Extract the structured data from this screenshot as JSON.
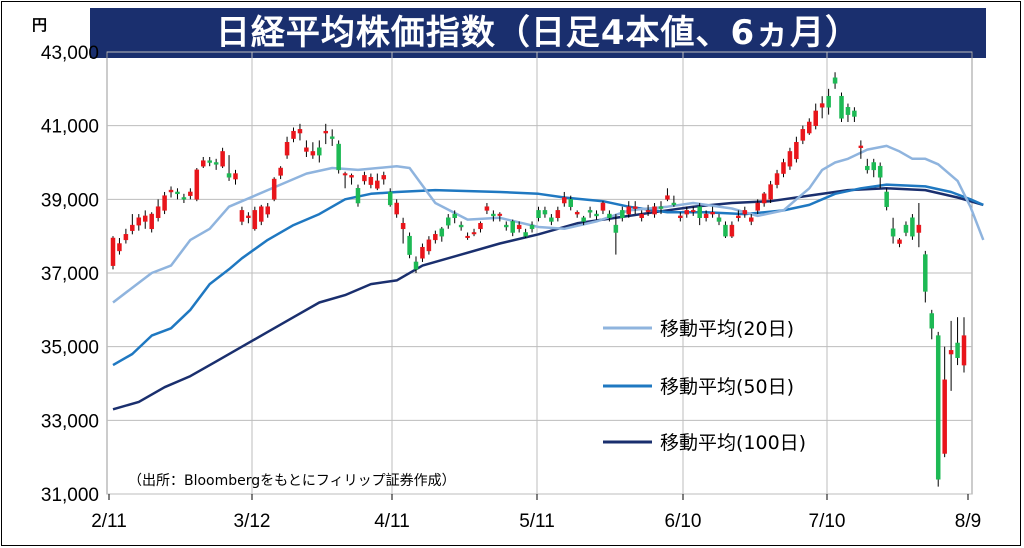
{
  "chart_data": {
    "type": "candlestick",
    "title": "日経平均株価指数（日足4本値、6ヵ月）",
    "unit": "円",
    "source": "（出所：Bloombergをもとにフィリップ証券作成）",
    "ylim": [
      31000,
      43000
    ],
    "y_ticks": [
      "31,000",
      "33,000",
      "35,000",
      "37,000",
      "39,000",
      "41,000",
      "43,000"
    ],
    "y_tick_values": [
      31000,
      33000,
      35000,
      37000,
      39000,
      41000,
      43000
    ],
    "x_ticks": [
      "2/11",
      "3/12",
      "4/11",
      "5/11",
      "6/10",
      "7/10",
      "8/9"
    ],
    "legend": [
      {
        "name": "移動平均(20日)",
        "color": "#8fb4de"
      },
      {
        "name": "移動平均(50日)",
        "color": "#1f78c1"
      },
      {
        "name": "移動平均(100日)",
        "color": "#1a2f6e"
      }
    ],
    "candles": [
      [
        37200,
        37950,
        37100,
        38000
      ],
      [
        37600,
        37800,
        37500,
        37950
      ],
      [
        37900,
        38050,
        37800,
        38200
      ],
      [
        38150,
        38300,
        38050,
        38600
      ],
      [
        38300,
        38500,
        38150,
        38600
      ],
      [
        38400,
        38550,
        38200,
        38700
      ],
      [
        38200,
        38600,
        38100,
        38650
      ],
      [
        38500,
        38800,
        38400,
        39000
      ],
      [
        38700,
        39100,
        38600,
        39200
      ],
      [
        39200,
        39250,
        39050,
        39350
      ],
      [
        39200,
        39150,
        39000,
        39300
      ],
      [
        39050,
        39000,
        38900,
        39150
      ],
      [
        39100,
        39200,
        39000,
        39300
      ],
      [
        39000,
        39800,
        38950,
        39850
      ],
      [
        39900,
        40050,
        39850,
        40150
      ],
      [
        40050,
        40000,
        39900,
        40150
      ],
      [
        40000,
        39950,
        39800,
        40100
      ],
      [
        39900,
        40300,
        39850,
        40400
      ],
      [
        39700,
        39600,
        39500,
        40200
      ],
      [
        39550,
        39700,
        39400,
        39800
      ],
      [
        38400,
        38700,
        38300,
        38800
      ],
      [
        38500,
        38550,
        38350,
        38650
      ],
      [
        38200,
        38700,
        38150,
        38800
      ],
      [
        38400,
        38800,
        38300,
        38850
      ],
      [
        38600,
        38800,
        38500,
        38900
      ],
      [
        39000,
        39550,
        38950,
        39600
      ],
      [
        39650,
        39850,
        39550,
        39900
      ],
      [
        40200,
        40550,
        40100,
        40700
      ],
      [
        40650,
        40850,
        40550,
        40950
      ],
      [
        40800,
        40900,
        40600,
        41050
      ],
      [
        40300,
        40400,
        40150,
        40600
      ],
      [
        40200,
        40300,
        40100,
        40550
      ],
      [
        40400,
        40200,
        40000,
        40600
      ],
      [
        40800,
        40850,
        40500,
        41050
      ],
      [
        40700,
        40650,
        40450,
        40900
      ],
      [
        40500,
        39800,
        39700,
        40600
      ],
      [
        39700,
        39700,
        39300,
        39750
      ],
      [
        39600,
        39650,
        39400,
        39700
      ],
      [
        39300,
        38900,
        38800,
        39400
      ],
      [
        39500,
        39650,
        39400,
        39750
      ],
      [
        39400,
        39600,
        39300,
        39700
      ],
      [
        39300,
        39500,
        39250,
        39700
      ],
      [
        39550,
        39650,
        39400,
        39750
      ],
      [
        39200,
        38850,
        38800,
        39300
      ],
      [
        38600,
        38900,
        38500,
        39000
      ],
      [
        38200,
        38350,
        37800,
        38500
      ],
      [
        38000,
        37500,
        37400,
        38100
      ],
      [
        37300,
        37100,
        37000,
        37450
      ],
      [
        37400,
        37700,
        37300,
        37800
      ],
      [
        37600,
        37900,
        37500,
        38000
      ],
      [
        37900,
        38050,
        37800,
        38150
      ],
      [
        38200,
        38000,
        37850,
        38250
      ],
      [
        38500,
        38300,
        38200,
        38600
      ],
      [
        38600,
        38500,
        38350,
        38700
      ],
      [
        38300,
        38250,
        38150,
        38400
      ],
      [
        38000,
        38000,
        37900,
        38100
      ],
      [
        38100,
        38100,
        38000,
        38200
      ],
      [
        38200,
        38350,
        38100,
        38400
      ],
      [
        38700,
        38800,
        38600,
        38900
      ],
      [
        38600,
        38550,
        38400,
        38700
      ],
      [
        38600,
        38600,
        38400,
        38650
      ],
      [
        38300,
        38250,
        38150,
        38400
      ],
      [
        38400,
        38100,
        38000,
        38450
      ],
      [
        38200,
        38300,
        38100,
        38400
      ],
      [
        38100,
        38000,
        37950,
        38200
      ],
      [
        38300,
        38200,
        38100,
        38400
      ],
      [
        38700,
        38500,
        38400,
        38800
      ],
      [
        38700,
        38600,
        38500,
        38800
      ],
      [
        38500,
        38400,
        38300,
        38600
      ],
      [
        38500,
        38700,
        38400,
        38800
      ],
      [
        38900,
        39050,
        38800,
        39200
      ],
      [
        39000,
        38800,
        38700,
        39100
      ],
      [
        38600,
        38650,
        38500,
        38700
      ],
      [
        38500,
        38400,
        38300,
        38550
      ],
      [
        38700,
        38650,
        38500,
        38800
      ],
      [
        38600,
        38550,
        38450,
        38700
      ],
      [
        38700,
        38900,
        38600,
        38950
      ],
      [
        38600,
        38500,
        38400,
        38700
      ],
      [
        38300,
        38100,
        37500,
        38600
      ],
      [
        38700,
        38500,
        38400,
        38800
      ],
      [
        38600,
        38800,
        38500,
        38950
      ],
      [
        38750,
        38800,
        38600,
        38950
      ],
      [
        38500,
        38600,
        38400,
        38700
      ],
      [
        38700,
        38700,
        38550,
        38850
      ],
      [
        38600,
        38800,
        38500,
        38900
      ],
      [
        38800,
        38750,
        38600,
        38950
      ],
      [
        39000,
        39100,
        38950,
        39300
      ],
      [
        38900,
        38850,
        38800,
        39100
      ],
      [
        38500,
        38550,
        38400,
        38650
      ],
      [
        38600,
        38700,
        38500,
        38800
      ],
      [
        38700,
        38700,
        38550,
        38800
      ],
      [
        38800,
        38500,
        38300,
        38900
      ],
      [
        38500,
        38600,
        38400,
        38700
      ],
      [
        38600,
        38650,
        38500,
        38800
      ],
      [
        38500,
        38400,
        38300,
        38600
      ],
      [
        38300,
        38000,
        37950,
        38400
      ],
      [
        38000,
        38300,
        37950,
        38400
      ],
      [
        38500,
        38550,
        38400,
        38700
      ],
      [
        38600,
        38700,
        38500,
        38800
      ],
      [
        38400,
        38500,
        38300,
        38600
      ],
      [
        38700,
        38900,
        38600,
        39000
      ],
      [
        38900,
        39150,
        38800,
        39200
      ],
      [
        39000,
        39400,
        38900,
        39500
      ],
      [
        39400,
        39700,
        39300,
        39800
      ],
      [
        39700,
        40000,
        39600,
        40100
      ],
      [
        39900,
        40300,
        39800,
        40400
      ],
      [
        40100,
        40550,
        40000,
        40700
      ],
      [
        40600,
        40900,
        40500,
        41000
      ],
      [
        40800,
        41100,
        40750,
        41200
      ],
      [
        41000,
        41400,
        40900,
        41600
      ],
      [
        41500,
        41600,
        41200,
        41800
      ],
      [
        41800,
        41500,
        41300,
        42000
      ],
      [
        42300,
        42150,
        42000,
        42450
      ],
      [
        41800,
        41200,
        41100,
        41900
      ],
      [
        41500,
        41300,
        41100,
        41600
      ],
      [
        41400,
        41250,
        41100,
        41500
      ],
      [
        40400,
        40450,
        40100,
        40600
      ],
      [
        39900,
        39800,
        39700,
        40100
      ],
      [
        40000,
        39800,
        39600,
        40100
      ],
      [
        39900,
        39600,
        39300,
        40000
      ],
      [
        39200,
        38800,
        38700,
        39300
      ],
      [
        38200,
        38000,
        37800,
        38500
      ],
      [
        37800,
        37900,
        37700,
        37950
      ],
      [
        38300,
        38100,
        38000,
        38400
      ],
      [
        38500,
        38000,
        37900,
        38600
      ],
      [
        38100,
        38300,
        37700,
        38900
      ],
      [
        37500,
        36500,
        36200,
        37600
      ],
      [
        35900,
        35500,
        35200,
        36000
      ],
      [
        35300,
        31400,
        31200,
        35400
      ],
      [
        32100,
        34100,
        32000,
        35000
      ],
      [
        34800,
        34900,
        33800,
        35700
      ],
      [
        35100,
        34700,
        34500,
        35800
      ],
      [
        34500,
        35300,
        34300,
        35800
      ]
    ],
    "ma20": [
      [
        0,
        36200
      ],
      [
        3,
        36600
      ],
      [
        6,
        37000
      ],
      [
        9,
        37200
      ],
      [
        12,
        37900
      ],
      [
        15,
        38200
      ],
      [
        18,
        38800
      ],
      [
        20,
        38950
      ],
      [
        26,
        39400
      ],
      [
        30,
        39700
      ],
      [
        34,
        39850
      ],
      [
        38,
        39800
      ],
      [
        44,
        39900
      ],
      [
        46,
        39850
      ],
      [
        50,
        38900
      ],
      [
        55,
        38450
      ],
      [
        60,
        38500
      ],
      [
        66,
        38250
      ],
      [
        70,
        38200
      ],
      [
        75,
        38400
      ],
      [
        80,
        38700
      ],
      [
        86,
        38800
      ],
      [
        90,
        38900
      ],
      [
        96,
        38750
      ],
      [
        100,
        38550
      ],
      [
        104,
        38700
      ],
      [
        106,
        39000
      ],
      [
        108,
        39300
      ],
      [
        110,
        39800
      ],
      [
        112,
        40000
      ],
      [
        114,
        40100
      ],
      [
        117,
        40350
      ],
      [
        120,
        40450
      ],
      [
        122,
        40300
      ],
      [
        124,
        40100
      ],
      [
        126,
        40100
      ],
      [
        128,
        39950
      ],
      [
        131,
        39500
      ],
      [
        133,
        38800
      ],
      [
        135,
        37900
      ]
    ],
    "ma50": [
      [
        0,
        34500
      ],
      [
        3,
        34800
      ],
      [
        6,
        35300
      ],
      [
        9,
        35500
      ],
      [
        12,
        36000
      ],
      [
        15,
        36700
      ],
      [
        18,
        37100
      ],
      [
        20,
        37400
      ],
      [
        24,
        37900
      ],
      [
        28,
        38300
      ],
      [
        32,
        38600
      ],
      [
        36,
        39000
      ],
      [
        40,
        39150
      ],
      [
        44,
        39200
      ],
      [
        50,
        39250
      ],
      [
        60,
        39200
      ],
      [
        66,
        39150
      ],
      [
        70,
        39050
      ],
      [
        76,
        38950
      ],
      [
        80,
        38800
      ],
      [
        86,
        38650
      ],
      [
        92,
        38650
      ],
      [
        98,
        38600
      ],
      [
        104,
        38700
      ],
      [
        108,
        38850
      ],
      [
        112,
        39150
      ],
      [
        116,
        39300
      ],
      [
        120,
        39400
      ],
      [
        126,
        39350
      ],
      [
        130,
        39200
      ],
      [
        133,
        39000
      ],
      [
        135,
        38850
      ]
    ],
    "ma100": [
      [
        0,
        33300
      ],
      [
        4,
        33500
      ],
      [
        8,
        33900
      ],
      [
        12,
        34200
      ],
      [
        16,
        34600
      ],
      [
        20,
        35000
      ],
      [
        24,
        35400
      ],
      [
        28,
        35800
      ],
      [
        32,
        36200
      ],
      [
        36,
        36400
      ],
      [
        40,
        36700
      ],
      [
        44,
        36800
      ],
      [
        48,
        37200
      ],
      [
        54,
        37500
      ],
      [
        60,
        37800
      ],
      [
        66,
        38050
      ],
      [
        72,
        38350
      ],
      [
        78,
        38500
      ],
      [
        84,
        38650
      ],
      [
        90,
        38800
      ],
      [
        96,
        38900
      ],
      [
        102,
        38950
      ],
      [
        108,
        39100
      ],
      [
        114,
        39250
      ],
      [
        120,
        39300
      ],
      [
        126,
        39250
      ],
      [
        131,
        39050
      ],
      [
        135,
        38850
      ]
    ]
  }
}
